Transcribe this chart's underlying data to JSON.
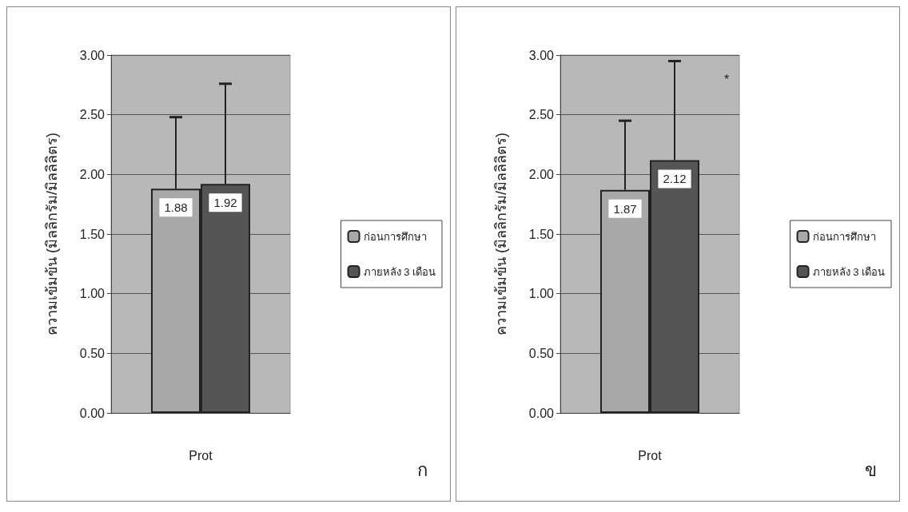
{
  "chart_data": [
    {
      "type": "bar",
      "categories": [
        "Prot"
      ],
      "ylabel": "ความเข้มข้น (มิลลิกรัม/มิลลิลิตร)",
      "ylim": [
        0,
        3
      ],
      "yticks": [
        {
          "value": 0,
          "label": "0.00"
        },
        {
          "value": 0.5,
          "label": "0.50"
        },
        {
          "value": 1,
          "label": "1.00"
        },
        {
          "value": 1.5,
          "label": "1.50"
        },
        {
          "value": 2,
          "label": "2.00"
        },
        {
          "value": 2.5,
          "label": "2.50"
        },
        {
          "value": 3,
          "label": "3.00"
        }
      ],
      "grid": "y",
      "legend": "right",
      "data_labels": true,
      "annotations": [
        "ก"
      ],
      "series": [
        {
          "name": "ก่อนการศึกษา",
          "color": "#a8a8a8",
          "values": [
            1.88
          ],
          "errors": [
            [
              1.88,
              2.48
            ]
          ]
        },
        {
          "name": "ภายหลัง 3 เดือน",
          "color": "#555555",
          "values": [
            1.92
          ],
          "errors": [
            [
              1.92,
              2.76
            ]
          ]
        }
      ]
    },
    {
      "type": "bar",
      "categories": [
        "Prot"
      ],
      "ylabel": "ความเข้มข้น (มิลลิกรัม/มิลลิลิตร)",
      "ylim": [
        0,
        3
      ],
      "yticks": [
        {
          "value": 0,
          "label": "0.00"
        },
        {
          "value": 0.5,
          "label": "0.50"
        },
        {
          "value": 1,
          "label": "1.00"
        },
        {
          "value": 1.5,
          "label": "1.50"
        },
        {
          "value": 2,
          "label": "2.00"
        },
        {
          "value": 2.5,
          "label": "2.50"
        },
        {
          "value": 3,
          "label": "3.00"
        }
      ],
      "grid": "y",
      "legend": "right",
      "data_labels": true,
      "annotations": [
        "*",
        "ข"
      ],
      "series": [
        {
          "name": "ก่อนการศึกษา",
          "color": "#a8a8a8",
          "values": [
            1.87
          ],
          "errors": [
            [
              1.87,
              2.45
            ]
          ]
        },
        {
          "name": "ภายหลัง 3 เดือน",
          "color": "#555555",
          "values": [
            2.12
          ],
          "errors": [
            [
              2.12,
              2.95
            ]
          ]
        }
      ]
    }
  ]
}
